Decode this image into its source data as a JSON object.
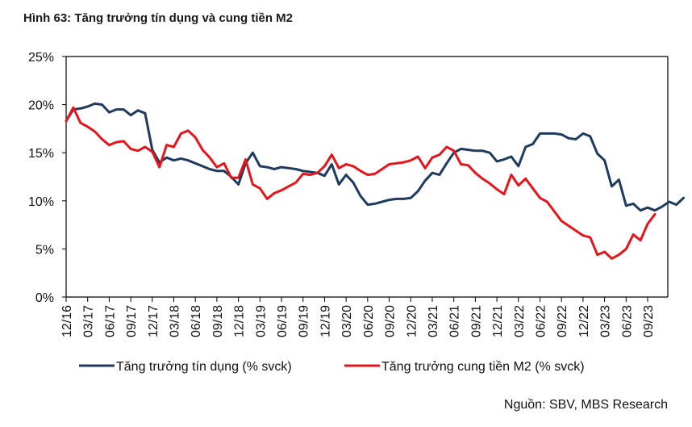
{
  "chart_data": {
    "type": "line",
    "title": "Hình 63: Tăng trưởng tín dụng và cung tiền M2",
    "xlabel": "",
    "ylabel": "",
    "ylim": [
      0,
      25
    ],
    "y_ticks": [
      "0%",
      "5%",
      "10%",
      "15%",
      "20%",
      "25%"
    ],
    "y_tick_values": [
      0,
      5,
      10,
      15,
      20,
      25
    ],
    "x_tick_labels": [
      "12/16",
      "03/17",
      "06/17",
      "09/17",
      "12/17",
      "03/18",
      "06/18",
      "09/18",
      "12/18",
      "03/19",
      "06/19",
      "09/19",
      "12/19",
      "03/20",
      "06/20",
      "09/20",
      "12/20",
      "03/21",
      "06/21",
      "09/21",
      "12/21",
      "03/22",
      "06/22",
      "09/22",
      "12/22",
      "03/23",
      "06/23",
      "09/23"
    ],
    "x_start": "12/16",
    "x_unit": "month",
    "grid": false,
    "legend_position": "bottom",
    "series": [
      {
        "name": "Tăng trưởng tín dụng (% svck)",
        "color": "#1f3a5f",
        "values": [
          18.3,
          19.5,
          19.6,
          19.8,
          20.1,
          20.0,
          19.2,
          19.5,
          19.5,
          18.9,
          19.4,
          19.1,
          15.3,
          14.0,
          14.5,
          14.2,
          14.4,
          14.2,
          13.9,
          13.6,
          13.3,
          13.1,
          13.1,
          12.5,
          11.7,
          13.9,
          15.0,
          13.6,
          13.5,
          13.3,
          13.5,
          13.4,
          13.3,
          13.1,
          13.0,
          12.9,
          12.6,
          13.8,
          11.7,
          12.7,
          11.9,
          10.5,
          9.6,
          9.7,
          9.9,
          10.1,
          10.2,
          10.2,
          10.3,
          11.0,
          12.1,
          12.9,
          12.7,
          13.9,
          15.0,
          15.4,
          15.3,
          15.2,
          15.2,
          15.0,
          14.1,
          14.3,
          14.6,
          13.6,
          15.6,
          15.9,
          17.0,
          17.0,
          17.0,
          16.9,
          16.5,
          16.4,
          17.0,
          16.7,
          14.9,
          14.2,
          11.5,
          12.2,
          9.5,
          9.7,
          9.0,
          9.3,
          9.0,
          9.4,
          9.9,
          9.6,
          10.3
        ]
      },
      {
        "name": "Tăng trưởng cung tiền M2 (% svck)",
        "color": "#e8141b",
        "values": [
          18.3,
          19.7,
          18.1,
          17.7,
          17.2,
          16.4,
          15.8,
          16.1,
          16.2,
          15.4,
          15.2,
          15.6,
          15.1,
          13.5,
          15.8,
          15.6,
          17.0,
          17.3,
          16.6,
          15.3,
          14.5,
          13.5,
          13.9,
          12.4,
          12.4,
          14.3,
          11.7,
          11.3,
          10.2,
          10.8,
          11.1,
          11.5,
          11.9,
          12.8,
          12.7,
          12.9,
          13.6,
          14.8,
          13.4,
          13.8,
          13.6,
          13.1,
          12.7,
          12.8,
          13.3,
          13.8,
          13.9,
          14.0,
          14.2,
          14.6,
          13.4,
          14.5,
          14.8,
          15.6,
          15.2,
          13.8,
          13.7,
          12.9,
          12.3,
          11.8,
          11.2,
          10.7,
          12.7,
          11.6,
          12.3,
          11.3,
          10.3,
          9.9,
          8.9,
          7.9,
          7.4,
          6.9,
          6.4,
          6.2,
          4.4,
          4.7,
          4.0,
          4.4,
          5.0,
          6.5,
          5.9,
          7.6,
          8.6
        ]
      }
    ]
  },
  "source_note": "Nguồn: SBV, MBS Research"
}
